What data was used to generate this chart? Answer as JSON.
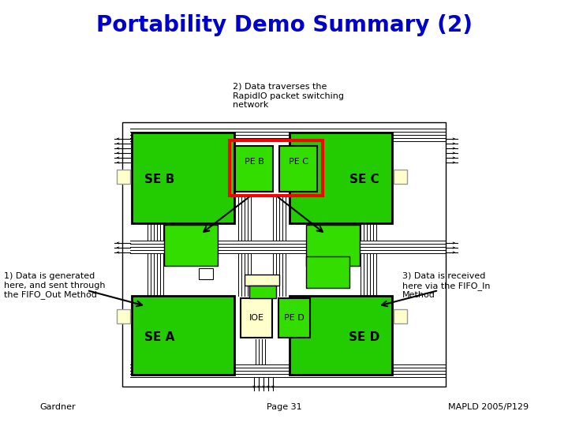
{
  "title": "Portability Demo Summary (2)",
  "title_color": "#0000CC",
  "title_fontsize": 20,
  "bg_color": "#FFFFFF",
  "green_main": "#22CC00",
  "green_sub": "#33DD00",
  "yellow_block": "#FFFFCC",
  "annotation2": "2) Data traverses the\nRapidIO packet switching\nnetwork",
  "annotation1": "1) Data is generated\nhere, and sent through\nthe FIFO_Out Method",
  "annotation3": "3) Data is received\nhere via the FIFO_In\nMethod",
  "footer_left": "Gardner",
  "footer_mid": "Page 31",
  "footer_right": "MAPLD 2005/P129",
  "label_SEB": "SE B",
  "label_SEC": "SE C",
  "label_SEA": "SE A",
  "label_SED": "SE D",
  "label_PEB": "PE B",
  "label_PEC": "PE C",
  "label_IOE": "IOE",
  "label_PED": "PE D"
}
